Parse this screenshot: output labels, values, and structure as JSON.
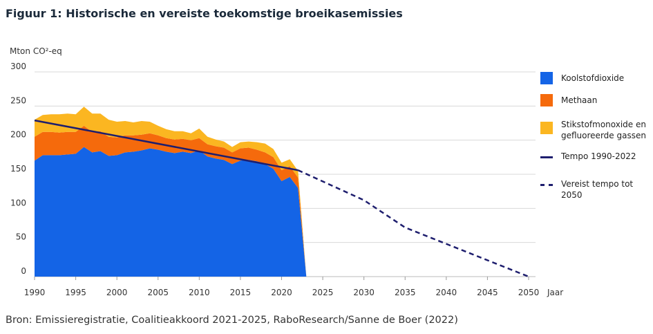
{
  "title": "Figuur 1: Historische en vereiste toekomstige broeikasemissies",
  "source": "Bron: Emissieregistratie, Coalitieakkoord 2021-2025, RaboResearch/Sanne de Boer (2022)",
  "chart_data": {
    "type": "area",
    "ylabel": "Mton CO²-eq",
    "xlabel": "Jaar",
    "xlim": [
      1990,
      2050
    ],
    "ylim": [
      0,
      300
    ],
    "yticks": [
      0,
      50,
      100,
      150,
      200,
      250,
      300
    ],
    "xticks": [
      1990,
      1995,
      2000,
      2005,
      2010,
      2015,
      2020,
      2025,
      2030,
      2035,
      2040,
      2045,
      2050
    ],
    "grid": "horizontal",
    "legend_position": "right",
    "x": [
      1990,
      1991,
      1992,
      1993,
      1994,
      1995,
      1996,
      1997,
      1998,
      1999,
      2000,
      2001,
      2002,
      2003,
      2004,
      2005,
      2006,
      2007,
      2008,
      2009,
      2010,
      2011,
      2012,
      2013,
      2014,
      2015,
      2016,
      2017,
      2018,
      2019,
      2020,
      2021,
      2022,
      2023
    ],
    "series": [
      {
        "name": "Koolstofdioxide",
        "color": "#1464e6",
        "values": [
          170,
          178,
          178,
          178,
          179,
          180,
          190,
          182,
          184,
          177,
          178,
          182,
          183,
          185,
          188,
          186,
          183,
          181,
          183,
          181,
          185,
          176,
          173,
          171,
          165,
          170,
          171,
          169,
          165,
          158,
          140,
          146,
          130,
          0
        ]
      },
      {
        "name": "Methaan",
        "color": "#f56a0c",
        "values": [
          35,
          34,
          34,
          33,
          33,
          32,
          31,
          30,
          29,
          28,
          26,
          25,
          24,
          23,
          22,
          21,
          20,
          20,
          19,
          19,
          18,
          18,
          18,
          18,
          17,
          18,
          18,
          17,
          17,
          17,
          16,
          16,
          15,
          0
        ]
      },
      {
        "name": "Stikstofmonoxide en gefluoreerde gassen",
        "color": "#fbb621",
        "values": [
          25,
          25,
          26,
          27,
          27,
          26,
          28,
          27,
          26,
          25,
          23,
          21,
          19,
          20,
          17,
          14,
          13,
          12,
          11,
          10,
          14,
          11,
          10,
          9,
          8,
          9,
          9,
          11,
          13,
          12,
          11,
          10,
          10,
          0
        ]
      }
    ],
    "lines": [
      {
        "name": "Tempo 1990-2022",
        "color": "#1e1e6e",
        "style": "solid",
        "points": [
          [
            1990,
            229
          ],
          [
            2022,
            156
          ]
        ]
      },
      {
        "name": "Vereist tempo tot 2050",
        "color": "#1e1e6e",
        "style": "dashed",
        "points": [
          [
            2022,
            156
          ],
          [
            2030,
            112
          ],
          [
            2035,
            72
          ],
          [
            2050,
            0
          ]
        ]
      }
    ]
  }
}
